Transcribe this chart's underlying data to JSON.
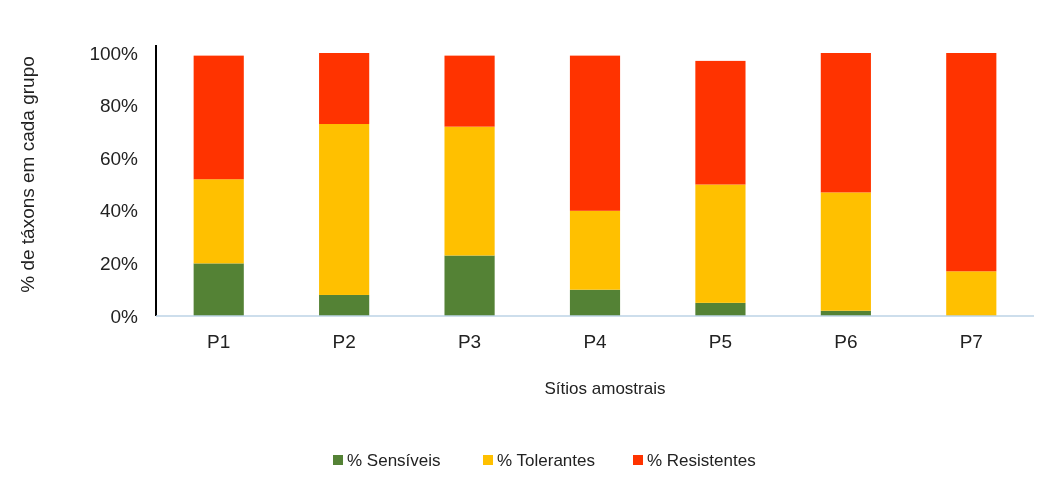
{
  "chart_data": {
    "type": "bar",
    "stacked": true,
    "xlabel": "Sítios amostrais",
    "ylabel": "% de táxons em cada grupo",
    "categories": [
      "P1",
      "P2",
      "P3",
      "P4",
      "P5",
      "P6",
      "P7"
    ],
    "series": [
      {
        "name": "% Sensíveis",
        "color": "#548235",
        "values": [
          20,
          8,
          23,
          10,
          5,
          2,
          0
        ]
      },
      {
        "name": "% Tolerantes",
        "color": "#ffc000",
        "values": [
          32,
          65,
          49,
          30,
          45,
          45,
          17
        ]
      },
      {
        "name": "% Resistentes",
        "color": "#ff3300",
        "values": [
          47,
          27,
          27,
          59,
          47,
          53,
          83
        ]
      }
    ],
    "ylim": [
      0,
      100
    ],
    "yticks": [
      {
        "value": 0,
        "label": "0%"
      },
      {
        "value": 20,
        "label": "20%"
      },
      {
        "value": 40,
        "label": "40%"
      },
      {
        "value": 60,
        "label": "60%"
      },
      {
        "value": 80,
        "label": "80%"
      },
      {
        "value": 100,
        "label": "100%"
      }
    ],
    "legend": "bottom"
  }
}
